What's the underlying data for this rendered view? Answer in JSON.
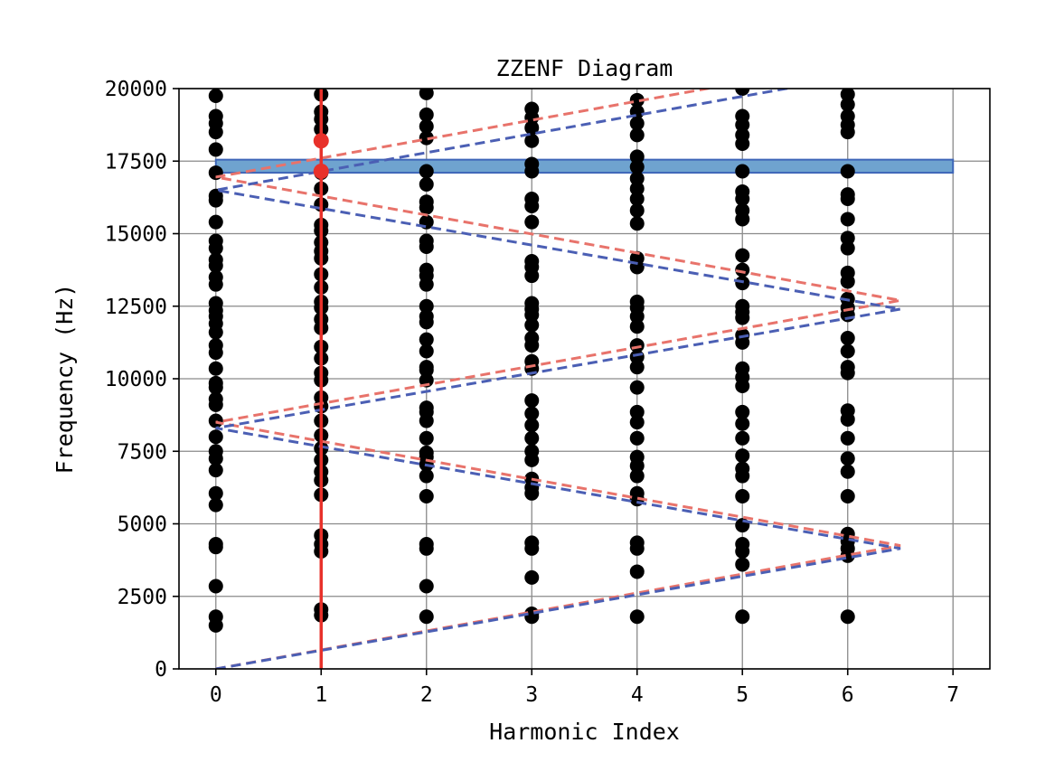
{
  "chart_data": {
    "type": "scatter",
    "title": "ZZENF Diagram",
    "xlabel": "Harmonic Index",
    "ylabel": "Frequency (Hz)",
    "xlim": [
      -0.35,
      7.35
    ],
    "ylim": [
      0,
      20000
    ],
    "x_ticks": [
      0,
      1,
      2,
      3,
      4,
      5,
      6,
      7
    ],
    "y_ticks": [
      0,
      2500,
      5000,
      7500,
      10000,
      12500,
      15000,
      17500,
      20000
    ],
    "grid": true,
    "colors": {
      "points": "#000000",
      "highlight": "#e8312a",
      "red_dashed": "#e8736b",
      "blue_dashed": "#4b5fb4",
      "band_fill": "#6fa3cf",
      "band_edge": "#3e66b8",
      "grid": "#8a8a8a"
    },
    "band": {
      "y_range": [
        17100,
        17550
      ],
      "x_range": [
        0,
        7
      ]
    },
    "highlight_line": {
      "x": 1
    },
    "highlight_points": [
      {
        "x": 1,
        "y": 18200
      },
      {
        "x": 1,
        "y": 17150
      }
    ],
    "dashed_lines": [
      {
        "color": "red",
        "points": [
          [
            0,
            0
          ],
          [
            6.5,
            4250
          ],
          [
            0,
            8500
          ],
          [
            6.5,
            12700
          ],
          [
            0,
            16950
          ],
          [
            6.5,
            21200
          ]
        ]
      },
      {
        "color": "blue",
        "points": [
          [
            0,
            0
          ],
          [
            6.5,
            4150
          ],
          [
            0,
            8300
          ],
          [
            6.5,
            12400
          ],
          [
            0,
            16500
          ],
          [
            6.5,
            20700
          ]
        ]
      }
    ],
    "series": [
      {
        "x": 0,
        "y": [
          1500,
          1800,
          2850,
          4200,
          4300,
          5650,
          6050,
          6850,
          7250,
          7500,
          8000,
          8550,
          9100,
          9300,
          9700,
          9850,
          10350,
          10900,
          11150,
          11600,
          11900,
          12150,
          12350,
          12600,
          13250,
          13500,
          13900,
          14100,
          14500,
          14750,
          15400,
          16150,
          16300,
          17100,
          17900,
          18500,
          18800,
          19050,
          19750
        ]
      },
      {
        "x": 1,
        "y": [
          1850,
          2050,
          4050,
          4300,
          4600,
          6000,
          6500,
          6800,
          7200,
          7600,
          8050,
          8550,
          9050,
          9350,
          9950,
          10200,
          10700,
          11100,
          11750,
          12050,
          12450,
          12650,
          13150,
          13600,
          14150,
          14400,
          14700,
          15100,
          15300,
          16000,
          16550,
          17100,
          18200,
          18600,
          18950,
          19200,
          19800
        ]
      },
      {
        "x": 2,
        "y": [
          1800,
          2850,
          4150,
          4300,
          5950,
          6650,
          7050,
          7300,
          7450,
          7950,
          8550,
          8850,
          9000,
          9950,
          10300,
          10400,
          10950,
          11350,
          11950,
          12150,
          12500,
          13250,
          13550,
          13750,
          14550,
          14750,
          15400,
          15900,
          16100,
          16700,
          17150,
          18300,
          18700,
          19100,
          19850
        ]
      },
      {
        "x": 3,
        "y": [
          1800,
          1900,
          3150,
          4150,
          4350,
          6050,
          6250,
          6550,
          7200,
          7500,
          7950,
          8400,
          8800,
          9250,
          10350,
          10600,
          11150,
          11400,
          11850,
          12200,
          12400,
          12600,
          13550,
          13850,
          14050,
          15400,
          15950,
          16200,
          17150,
          17400,
          18200,
          18650,
          19000,
          19300
        ]
      },
      {
        "x": 4,
        "y": [
          1800,
          3350,
          4150,
          4350,
          5850,
          6050,
          6650,
          7000,
          7300,
          7950,
          8500,
          8850,
          9700,
          10400,
          10750,
          11150,
          11800,
          12150,
          12450,
          12650,
          13850,
          14150,
          15350,
          15800,
          16200,
          16550,
          16900,
          17300,
          17650,
          18400,
          18800,
          19200,
          19600
        ]
      },
      {
        "x": 5,
        "y": [
          1800,
          3600,
          4050,
          4300,
          4950,
          5950,
          6650,
          6900,
          7350,
          7950,
          8450,
          8850,
          9750,
          10050,
          10350,
          11250,
          11500,
          12100,
          12300,
          12500,
          13300,
          13750,
          14250,
          15500,
          15800,
          16200,
          16450,
          17150,
          18100,
          18400,
          18750,
          19050,
          20000
        ]
      },
      {
        "x": 6,
        "y": [
          1800,
          3900,
          4150,
          4400,
          4650,
          5950,
          6800,
          7250,
          7950,
          8600,
          8900,
          10200,
          10400,
          10950,
          11400,
          12200,
          12450,
          12750,
          13350,
          13650,
          14500,
          14850,
          15500,
          16200,
          16350,
          17150,
          18500,
          18750,
          19050,
          19450,
          19800
        ]
      }
    ]
  }
}
